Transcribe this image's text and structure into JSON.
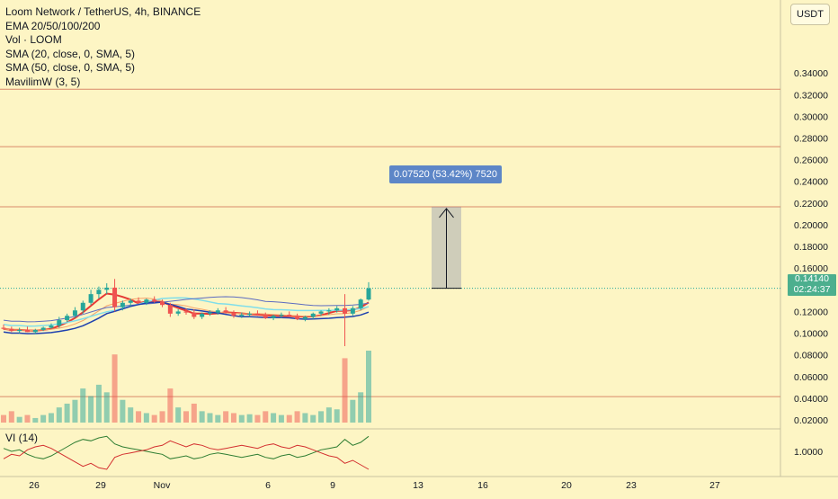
{
  "legend": {
    "title": "Loom Network / TetherUS, 4h, BINANCE",
    "indicators": [
      "EMA 20/50/100/200",
      "Vol · LOOM",
      "SMA (20, close, 0, SMA, 5)",
      "SMA (50, close, 0, SMA, 5)",
      "MavilimW (3, 5)"
    ]
  },
  "vi_label": "VI (14)",
  "currency": "USDT",
  "last_price": "0.14140",
  "countdown": "02:24:37",
  "measure_label": "0.07520 (53.42%) 7520",
  "colors": {
    "background": "#fdf5c4",
    "up": "#26a69a",
    "down": "#ef5350",
    "accent": "#5d86c7"
  },
  "chart_data": {
    "type": "candlestick",
    "title": "Loom Network / TetherUS, 4h, BINANCE",
    "ylim": [
      0.02,
      0.37
    ],
    "price_ticks": [
      "0.34000",
      "0.32000",
      "0.30000",
      "0.28000",
      "0.26000",
      "0.24000",
      "0.22000",
      "0.20000",
      "0.18000",
      "0.16000",
      "0.14000",
      "0.12000",
      "0.10000",
      "0.08000",
      "0.06000",
      "0.04000",
      "0.02000"
    ],
    "price_tick_values": [
      0.34,
      0.32,
      0.3,
      0.28,
      0.26,
      0.24,
      0.22,
      0.2,
      0.18,
      0.16,
      0.14,
      0.12,
      0.1,
      0.08,
      0.06,
      0.04,
      0.02
    ],
    "x_ticks": [
      "26",
      "29",
      "Nov",
      "6",
      "9",
      "13",
      "16",
      "20",
      "23",
      "27"
    ],
    "horizontal_lines": [
      0.325,
      0.272,
      0.2166,
      0.0415
    ],
    "last_price": 0.1414,
    "measure": {
      "from": 0.1414,
      "to": 0.2166,
      "delta": 0.0752,
      "percent": 53.42
    },
    "candles": [
      [
        0.105,
        0.108,
        0.103,
        0.104
      ],
      [
        0.104,
        0.106,
        0.101,
        0.102
      ],
      [
        0.102,
        0.105,
        0.1,
        0.103
      ],
      [
        0.103,
        0.106,
        0.101,
        0.101
      ],
      [
        0.101,
        0.104,
        0.099,
        0.103
      ],
      [
        0.103,
        0.106,
        0.102,
        0.105
      ],
      [
        0.105,
        0.109,
        0.104,
        0.107
      ],
      [
        0.107,
        0.115,
        0.105,
        0.112
      ],
      [
        0.112,
        0.118,
        0.11,
        0.116
      ],
      [
        0.116,
        0.124,
        0.114,
        0.121
      ],
      [
        0.121,
        0.13,
        0.118,
        0.128
      ],
      [
        0.128,
        0.14,
        0.126,
        0.136
      ],
      [
        0.136,
        0.143,
        0.132,
        0.14
      ],
      [
        0.14,
        0.146,
        0.136,
        0.142
      ],
      [
        0.142,
        0.15,
        0.12,
        0.124
      ],
      [
        0.124,
        0.13,
        0.121,
        0.128
      ],
      [
        0.128,
        0.132,
        0.125,
        0.13
      ],
      [
        0.13,
        0.133,
        0.127,
        0.128
      ],
      [
        0.128,
        0.132,
        0.126,
        0.131
      ],
      [
        0.131,
        0.134,
        0.128,
        0.129
      ],
      [
        0.129,
        0.131,
        0.124,
        0.126
      ],
      [
        0.126,
        0.128,
        0.115,
        0.118
      ],
      [
        0.118,
        0.122,
        0.116,
        0.12
      ],
      [
        0.12,
        0.123,
        0.117,
        0.119
      ],
      [
        0.119,
        0.122,
        0.113,
        0.115
      ],
      [
        0.115,
        0.119,
        0.113,
        0.118
      ],
      [
        0.118,
        0.121,
        0.116,
        0.119
      ],
      [
        0.119,
        0.123,
        0.117,
        0.121
      ],
      [
        0.121,
        0.124,
        0.118,
        0.119
      ],
      [
        0.119,
        0.121,
        0.114,
        0.116
      ],
      [
        0.116,
        0.119,
        0.114,
        0.117
      ],
      [
        0.117,
        0.12,
        0.115,
        0.118
      ],
      [
        0.118,
        0.121,
        0.116,
        0.117
      ],
      [
        0.117,
        0.119,
        0.113,
        0.114
      ],
      [
        0.114,
        0.117,
        0.112,
        0.116
      ],
      [
        0.116,
        0.119,
        0.114,
        0.117
      ],
      [
        0.117,
        0.12,
        0.115,
        0.116
      ],
      [
        0.116,
        0.118,
        0.112,
        0.113
      ],
      [
        0.113,
        0.116,
        0.111,
        0.115
      ],
      [
        0.115,
        0.119,
        0.113,
        0.118
      ],
      [
        0.118,
        0.121,
        0.116,
        0.12
      ],
      [
        0.12,
        0.123,
        0.117,
        0.121
      ],
      [
        0.121,
        0.125,
        0.119,
        0.123
      ],
      [
        0.123,
        0.136,
        0.088,
        0.118
      ],
      [
        0.118,
        0.125,
        0.116,
        0.123
      ],
      [
        0.123,
        0.132,
        0.121,
        0.131
      ],
      [
        0.131,
        0.147,
        0.13,
        0.1414
      ]
    ],
    "volume": [
      2,
      3,
      1.5,
      2,
      1.2,
      2,
      2.5,
      4,
      5,
      6,
      9,
      7,
      10,
      8,
      18,
      6,
      4,
      3,
      2.5,
      2,
      3,
      9,
      4,
      3,
      5,
      3,
      2.5,
      2,
      3,
      2.5,
      2,
      2.2,
      2,
      3,
      2.5,
      2,
      2,
      3,
      2.5,
      2,
      3,
      4,
      3.5,
      17,
      6,
      8,
      19
    ],
    "vi": {
      "plus": [
        1.02,
        1.0,
        1.01,
        0.98,
        0.96,
        0.95,
        0.97,
        1.0,
        1.03,
        1.06,
        1.08,
        1.07,
        1.09,
        1.1,
        1.05,
        1.03,
        1.02,
        1.01,
        1.0,
        0.99,
        0.98,
        0.95,
        0.96,
        0.97,
        0.95,
        0.96,
        0.98,
        0.99,
        0.98,
        0.97,
        0.96,
        0.97,
        0.98,
        0.96,
        0.95,
        0.97,
        0.98,
        0.96,
        0.97,
        0.99,
        1.01,
        1.02,
        1.03,
        1.08,
        1.04,
        1.06,
        1.1
      ],
      "minus": [
        0.95,
        0.98,
        0.97,
        1.01,
        1.03,
        1.04,
        1.02,
        0.99,
        0.96,
        0.93,
        0.9,
        0.92,
        0.89,
        0.88,
        0.96,
        0.98,
        0.99,
        1.0,
        1.01,
        1.03,
        1.04,
        1.07,
        1.05,
        1.03,
        1.05,
        1.04,
        1.02,
        1.01,
        1.02,
        1.03,
        1.04,
        1.03,
        1.02,
        1.04,
        1.05,
        1.03,
        1.02,
        1.04,
        1.03,
        1.01,
        0.99,
        0.97,
        0.96,
        0.92,
        0.94,
        0.91,
        0.88
      ]
    },
    "vi_tick": "1.0000"
  }
}
